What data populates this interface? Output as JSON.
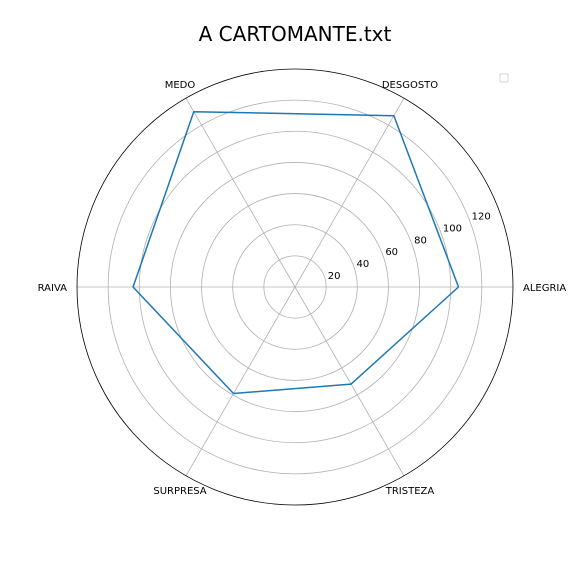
{
  "chart_data": {
    "type": "radar",
    "title": "A CARTOMANTE.txt",
    "categories": [
      "ALEGRIA",
      "DESGOSTO",
      "MEDO",
      "RAIVA",
      "SURPRESA",
      "TRISTEZA"
    ],
    "series": [
      {
        "values": [
          105,
          127,
          130,
          104,
          79,
          72
        ],
        "color": "#1f77b4"
      }
    ],
    "radial_ticks": [
      20,
      40,
      60,
      80,
      100,
      120
    ],
    "rlim": [
      0,
      140
    ],
    "grid": true,
    "legend": "top-right",
    "legend_entries": []
  }
}
